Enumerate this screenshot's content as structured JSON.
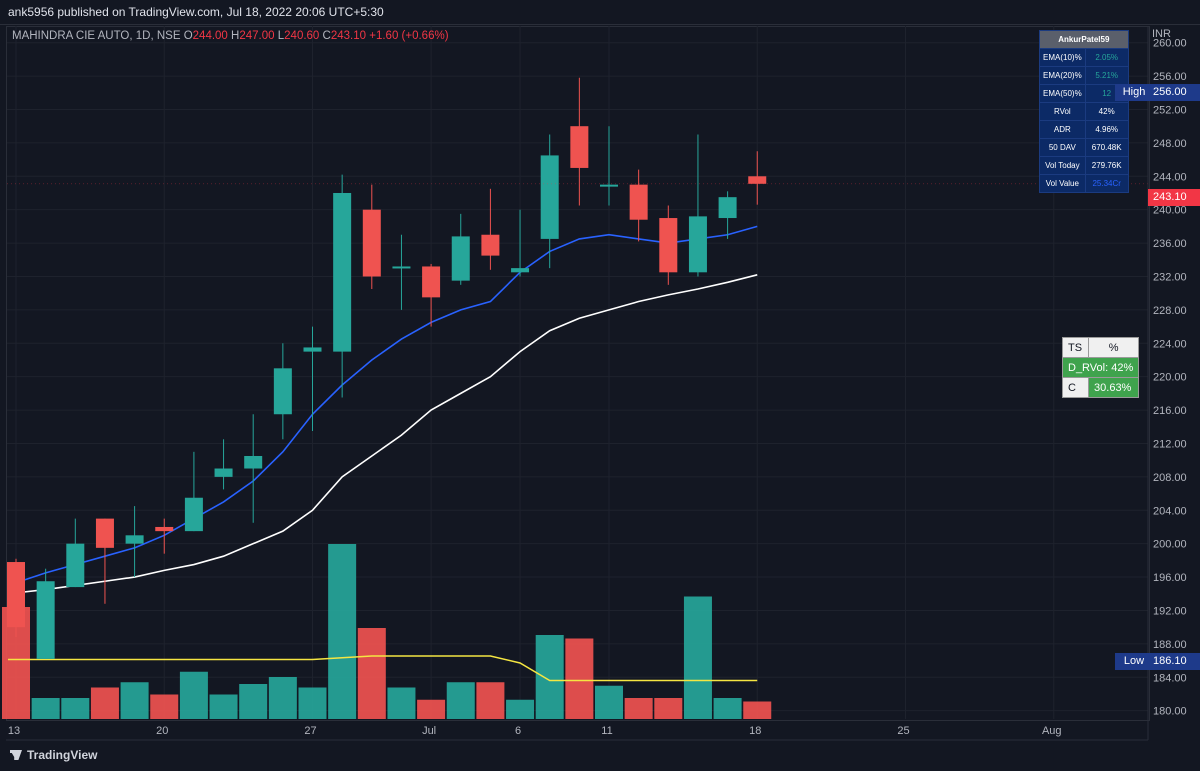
{
  "header": {
    "published_text": "ank5956 published on TradingView.com, Jul 18, 2022 20:06 UTC+5:30"
  },
  "legend": {
    "symbol": "MAHINDRA CIE AUTO, 1D, NSE",
    "open_label": "O",
    "open": "244.00",
    "high_label": "H",
    "high": "247.00",
    "low_label": "L",
    "low": "240.60",
    "close_label": "C",
    "close": "243.10",
    "change": "+1.60 (+0.66%)"
  },
  "axis": {
    "currency": "INR"
  },
  "price_tags": {
    "high_label": "High",
    "high_value": "256.00",
    "low_label": "Low",
    "low_value": "186.10",
    "last_value": "243.10"
  },
  "info_table": {
    "title": "AnkurPatel59",
    "rows": [
      {
        "label": "EMA(10)%",
        "value": "2.05%",
        "value_color": "#26a69a"
      },
      {
        "label": "EMA(20)%",
        "value": "5.21%",
        "value_color": "#26a69a"
      },
      {
        "label": "EMA(50)%",
        "value": "12",
        "value_color": "#26a69a"
      },
      {
        "label": "RVol",
        "value": "42%",
        "value_color": "#ffffff"
      },
      {
        "label": "ADR",
        "value": "4.96%",
        "value_color": "#ffffff"
      },
      {
        "label": "50 DAV",
        "value": "670.48K",
        "value_color": "#ffffff"
      },
      {
        "label": "Vol Today",
        "value": "279.76K",
        "value_color": "#ffffff"
      },
      {
        "label": "Vol Value",
        "value": "25.34Cr",
        "value_color": "#2962ff"
      }
    ]
  },
  "ts_table": {
    "r1c1": "TS",
    "r1c2": "%",
    "r2": "D_RVol: 42%",
    "r3c1": "C",
    "r3c2": "30.63%"
  },
  "footer": {
    "brand": "TradingView"
  },
  "colors": {
    "background": "#131722",
    "up": "#26a69a",
    "down": "#f23645",
    "ema_fast": "#2962ff",
    "ema_slow": "#ffffff",
    "vol_ma": "#f5e642"
  },
  "chart_data": {
    "type": "candlestick",
    "ylim": [
      179,
      262
    ],
    "yticks": [
      180,
      184,
      188,
      192,
      196,
      200,
      204,
      208,
      212,
      216,
      220,
      224,
      228,
      232,
      236,
      240,
      244,
      248,
      252,
      256,
      260
    ],
    "x_tick_labels": [
      {
        "label": "13",
        "index": 0
      },
      {
        "label": "20",
        "index": 5
      },
      {
        "label": "27",
        "index": 10
      },
      {
        "label": "Jul",
        "index": 14
      },
      {
        "label": "6",
        "index": 17
      },
      {
        "label": "11",
        "index": 20
      },
      {
        "label": "18",
        "index": 25
      },
      {
        "label": "25",
        "index": 30
      },
      {
        "label": "Aug",
        "index": 35
      }
    ],
    "candles": [
      {
        "date": "Jun 13",
        "o": 197.8,
        "h": 198.2,
        "l": 188.8,
        "c": 190.0
      },
      {
        "date": "Jun 14",
        "o": 186.2,
        "h": 197.0,
        "l": 186.2,
        "c": 195.5
      },
      {
        "date": "Jun 15",
        "o": 194.8,
        "h": 203.0,
        "l": 194.8,
        "c": 200.0
      },
      {
        "date": "Jun 16",
        "o": 203.0,
        "h": 203.0,
        "l": 192.8,
        "c": 199.5
      },
      {
        "date": "Jun 17",
        "o": 200.0,
        "h": 204.5,
        "l": 196.0,
        "c": 201.0
      },
      {
        "date": "Jun 20",
        "o": 202.0,
        "h": 203.0,
        "l": 198.8,
        "c": 201.5
      },
      {
        "date": "Jun 21",
        "o": 201.5,
        "h": 211.0,
        "l": 201.5,
        "c": 205.5
      },
      {
        "date": "Jun 22",
        "o": 208.0,
        "h": 212.5,
        "l": 206.5,
        "c": 209.0
      },
      {
        "date": "Jun 23",
        "o": 209.0,
        "h": 215.5,
        "l": 202.5,
        "c": 210.5
      },
      {
        "date": "Jun 24",
        "o": 215.5,
        "h": 224.0,
        "l": 212.5,
        "c": 221.0
      },
      {
        "date": "Jun 27",
        "o": 223.0,
        "h": 226.0,
        "l": 213.5,
        "c": 223.5
      },
      {
        "date": "Jun 28",
        "o": 223.0,
        "h": 244.2,
        "l": 217.5,
        "c": 242.0
      },
      {
        "date": "Jun 29",
        "o": 240.0,
        "h": 243.0,
        "l": 230.5,
        "c": 232.0
      },
      {
        "date": "Jun 30",
        "o": 233.0,
        "h": 237.0,
        "l": 228.0,
        "c": 233.2
      },
      {
        "date": "Jul 1",
        "o": 233.2,
        "h": 233.5,
        "l": 226.0,
        "c": 229.5
      },
      {
        "date": "Jul 4",
        "o": 231.5,
        "h": 239.5,
        "l": 231.0,
        "c": 236.8
      },
      {
        "date": "Jul 5",
        "o": 237.0,
        "h": 242.5,
        "l": 232.8,
        "c": 234.5
      },
      {
        "date": "Jul 6",
        "o": 232.5,
        "h": 240.0,
        "l": 232.0,
        "c": 233.0
      },
      {
        "date": "Jul 7",
        "o": 236.5,
        "h": 249.0,
        "l": 233.0,
        "c": 246.5
      },
      {
        "date": "Jul 8",
        "o": 250.0,
        "h": 255.8,
        "l": 240.5,
        "c": 245.0
      },
      {
        "date": "Jul 11",
        "o": 243.0,
        "h": 250.0,
        "l": 240.5,
        "c": 243.0
      },
      {
        "date": "Jul 12",
        "o": 243.0,
        "h": 244.8,
        "l": 236.2,
        "c": 238.8
      },
      {
        "date": "Jul 13",
        "o": 239.0,
        "h": 240.5,
        "l": 231.0,
        "c": 232.5
      },
      {
        "date": "Jul 14",
        "o": 232.5,
        "h": 249.0,
        "l": 232.0,
        "c": 239.2
      },
      {
        "date": "Jul 15",
        "o": 239.0,
        "h": 242.2,
        "l": 236.5,
        "c": 241.5
      },
      {
        "date": "Jul 18",
        "o": 244.0,
        "h": 247.0,
        "l": 240.6,
        "c": 243.1
      }
    ],
    "ema_fast": [
      195.0,
      196.5,
      197.5,
      198.5,
      199.5,
      201.0,
      203.0,
      205.0,
      207.5,
      211.0,
      215.5,
      219.0,
      222.0,
      224.5,
      226.5,
      228.0,
      229.0,
      232.5,
      235.0,
      236.5,
      237.0,
      236.5,
      236.0,
      236.5,
      237.0,
      238.0
    ],
    "ema_slow": [
      194.0,
      194.5,
      195.0,
      195.5,
      196.0,
      196.8,
      197.5,
      198.5,
      200.0,
      201.5,
      204.0,
      208.0,
      210.5,
      213.0,
      216.0,
      218.0,
      220.0,
      223.0,
      225.5,
      227.0,
      228.0,
      229.0,
      229.8,
      230.5,
      231.3,
      232.2
    ],
    "volume": {
      "max_fraction_ref": 1.0,
      "bars": [
        0.64,
        0.12,
        0.12,
        0.18,
        0.21,
        0.14,
        0.27,
        0.14,
        0.2,
        0.24,
        0.18,
        1.0,
        0.52,
        0.18,
        0.11,
        0.21,
        0.21,
        0.11,
        0.48,
        0.46,
        0.19,
        0.12,
        0.12,
        0.7,
        0.12,
        0.1
      ],
      "ma": [
        0.34,
        0.34,
        0.34,
        0.34,
        0.34,
        0.34,
        0.34,
        0.34,
        0.34,
        0.34,
        0.34,
        0.35,
        0.36,
        0.36,
        0.36,
        0.36,
        0.36,
        0.32,
        0.22,
        0.22,
        0.22,
        0.22,
        0.22,
        0.22,
        0.22,
        0.22
      ]
    }
  }
}
